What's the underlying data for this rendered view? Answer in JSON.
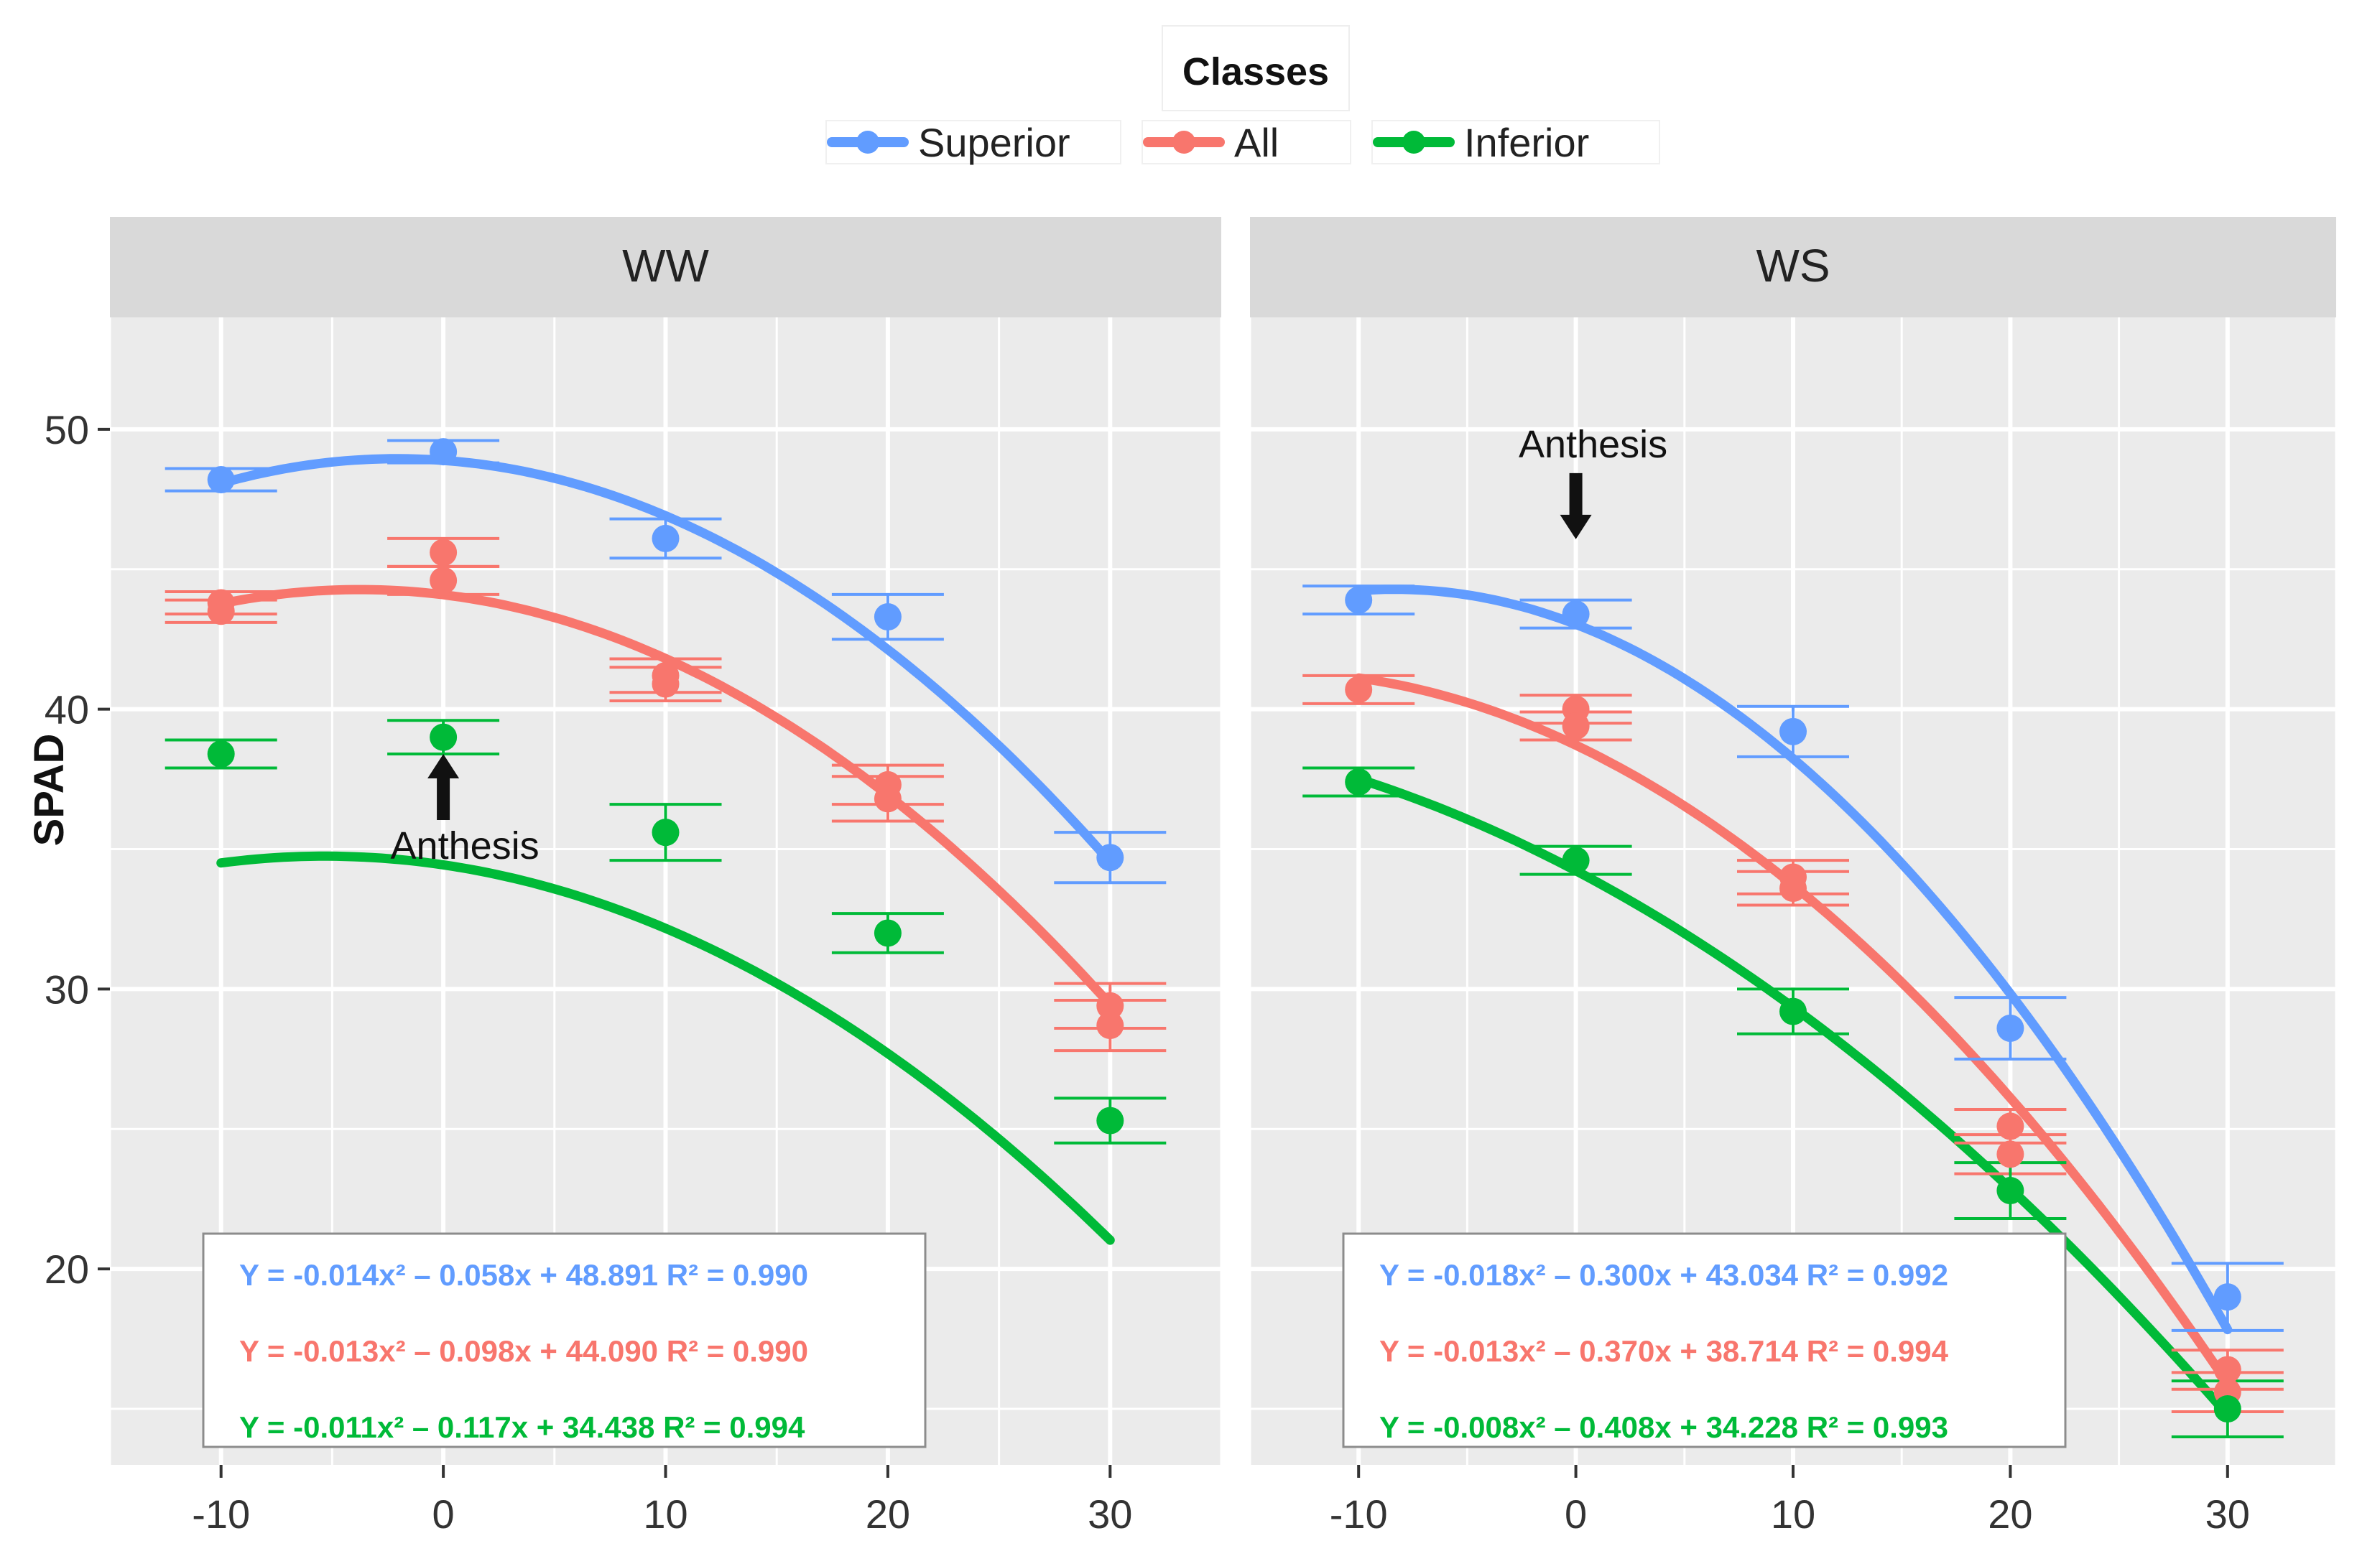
{
  "chart_data": {
    "type": "scatter",
    "ylabel": "SPAD",
    "xlabel": "",
    "ylim": [
      13,
      54
    ],
    "xlim": [
      -15,
      35
    ],
    "x_ticks": [
      -10,
      0,
      10,
      20,
      30
    ],
    "y_ticks": [
      20,
      30,
      40,
      50
    ],
    "legend": {
      "title": "Classes",
      "position": "top",
      "entries": [
        {
          "name": "Superior",
          "color": "#619CFF"
        },
        {
          "name": "All",
          "color": "#F8766D"
        },
        {
          "name": "Inferior",
          "color": "#00BA38"
        }
      ]
    },
    "annotation_label": "Anthesis",
    "panels": [
      {
        "name": "WW",
        "annotation": {
          "x": 0,
          "y": 38.4,
          "direction": "up"
        },
        "series": [
          {
            "name": "Superior",
            "color": "#619CFF",
            "points": [
              {
                "x": -10,
                "y": 48.2,
                "err": 0.4
              },
              {
                "x": 0,
                "y": 49.2,
                "err": 0.4
              },
              {
                "x": 10,
                "y": 46.1,
                "err": 0.7
              },
              {
                "x": 20,
                "y": 43.3,
                "err": 0.8
              },
              {
                "x": 30,
                "y": 34.7,
                "err": 0.9
              }
            ],
            "coef": [
              -0.014,
              -0.058,
              48.891
            ],
            "equation": "Y = -0.014x² – 0.058x + 48.891  R² = 0.990"
          },
          {
            "name": "All",
            "color": "#F8766D",
            "points": [
              {
                "x": -10,
                "y": 43.8,
                "err": 0.4
              },
              {
                "x": -10,
                "y": 43.5,
                "err": 0.4
              },
              {
                "x": 0,
                "y": 45.6,
                "err": 0.5
              },
              {
                "x": 0,
                "y": 44.6,
                "err": 0.5
              },
              {
                "x": 10,
                "y": 41.2,
                "err": 0.6
              },
              {
                "x": 10,
                "y": 40.9,
                "err": 0.6
              },
              {
                "x": 20,
                "y": 37.3,
                "err": 0.7
              },
              {
                "x": 20,
                "y": 36.8,
                "err": 0.8
              },
              {
                "x": 30,
                "y": 29.4,
                "err": 0.8
              },
              {
                "x": 30,
                "y": 28.7,
                "err": 0.9
              }
            ],
            "coef": [
              -0.013,
              -0.098,
              44.09
            ],
            "equation": "Y = -0.013x² – 0.098x + 44.090  R² = 0.990"
          },
          {
            "name": "Inferior",
            "color": "#00BA38",
            "points": [
              {
                "x": -10,
                "y": 38.4,
                "err": 0.5
              },
              {
                "x": 0,
                "y": 39.0,
                "err": 0.6
              },
              {
                "x": 10,
                "y": 35.6,
                "err": 1.0
              },
              {
                "x": 20,
                "y": 32.0,
                "err": 0.7
              },
              {
                "x": 30,
                "y": 25.3,
                "err": 0.8
              }
            ],
            "coef": [
              -0.011,
              -0.117,
              34.438
            ],
            "equation": "Y = -0.011x² – 0.117x + 34.438  R² = 0.994"
          }
        ]
      },
      {
        "name": "WS",
        "annotation": {
          "x": 0,
          "y": 49.0,
          "direction": "down"
        },
        "series": [
          {
            "name": "Superior",
            "color": "#619CFF",
            "points": [
              {
                "x": -10,
                "y": 43.9,
                "err": 0.5
              },
              {
                "x": 0,
                "y": 43.4,
                "err": 0.5
              },
              {
                "x": 10,
                "y": 39.2,
                "err": 0.9
              },
              {
                "x": 20,
                "y": 28.6,
                "err": 1.1
              },
              {
                "x": 30,
                "y": 19.0,
                "err": 1.2
              }
            ],
            "coef": [
              -0.018,
              -0.3,
              43.034
            ],
            "equation": "Y = -0.018x² – 0.300x + 43.034  R² = 0.992"
          },
          {
            "name": "All",
            "color": "#F8766D",
            "points": [
              {
                "x": -10,
                "y": 40.7,
                "err": 0.5
              },
              {
                "x": 0,
                "y": 40.0,
                "err": 0.5
              },
              {
                "x": 0,
                "y": 39.4,
                "err": 0.5
              },
              {
                "x": 10,
                "y": 34.0,
                "err": 0.6
              },
              {
                "x": 10,
                "y": 33.6,
                "err": 0.6
              },
              {
                "x": 20,
                "y": 25.1,
                "err": 0.6
              },
              {
                "x": 20,
                "y": 24.1,
                "err": 0.7
              },
              {
                "x": 30,
                "y": 16.4,
                "err": 0.7
              },
              {
                "x": 30,
                "y": 15.6,
                "err": 0.7
              }
            ],
            "coef": [
              -0.013,
              -0.37,
              38.714
            ],
            "equation": "Y = -0.013x² – 0.370x + 38.714  R² = 0.994"
          },
          {
            "name": "Inferior",
            "color": "#00BA38",
            "points": [
              {
                "x": -10,
                "y": 37.4,
                "err": 0.5
              },
              {
                "x": 0,
                "y": 34.6,
                "err": 0.5
              },
              {
                "x": 10,
                "y": 29.2,
                "err": 0.8
              },
              {
                "x": 20,
                "y": 22.8,
                "err": 1.0
              },
              {
                "x": 30,
                "y": 15.0,
                "err": 1.0
              }
            ],
            "coef": [
              -0.008,
              -0.408,
              34.228
            ],
            "equation": "Y = -0.008x² – 0.408x + 34.228  R² = 0.993"
          }
        ]
      }
    ]
  }
}
